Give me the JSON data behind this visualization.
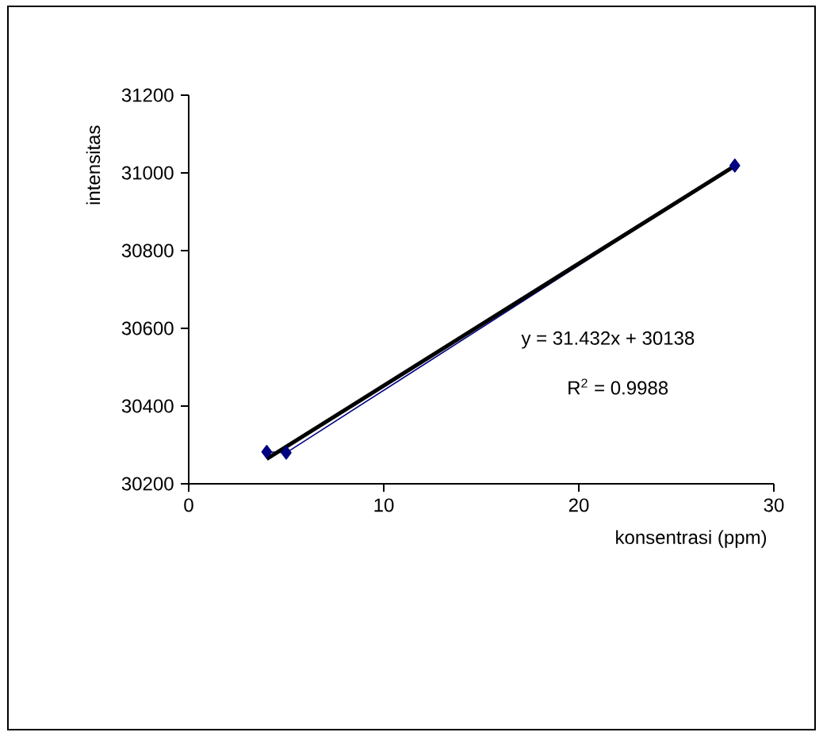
{
  "chart_data": {
    "type": "line",
    "xlabel": "konsentrasi (ppm)",
    "ylabel": "intensitas",
    "annotations": [
      "y = 31.432x + 30138",
      "R$^{2}$ = 0.9988"
    ],
    "xlim": [
      0,
      30
    ],
    "xticks": [
      0,
      10,
      20,
      30
    ],
    "ylim": [
      30200,
      31200
    ],
    "yticks": [
      30200,
      30400,
      30600,
      30800,
      31000,
      31200
    ],
    "marker": "diamond",
    "series": [
      {
        "color": "#000080",
        "x": [
          4,
          5,
          28
        ],
        "values": [
          30282,
          30280,
          31019
        ]
      },
      {
        "color": "#000000",
        "marker": "none",
        "x": [
          4,
          28
        ],
        "values": [
          30264,
          31018
        ]
      }
    ]
  }
}
